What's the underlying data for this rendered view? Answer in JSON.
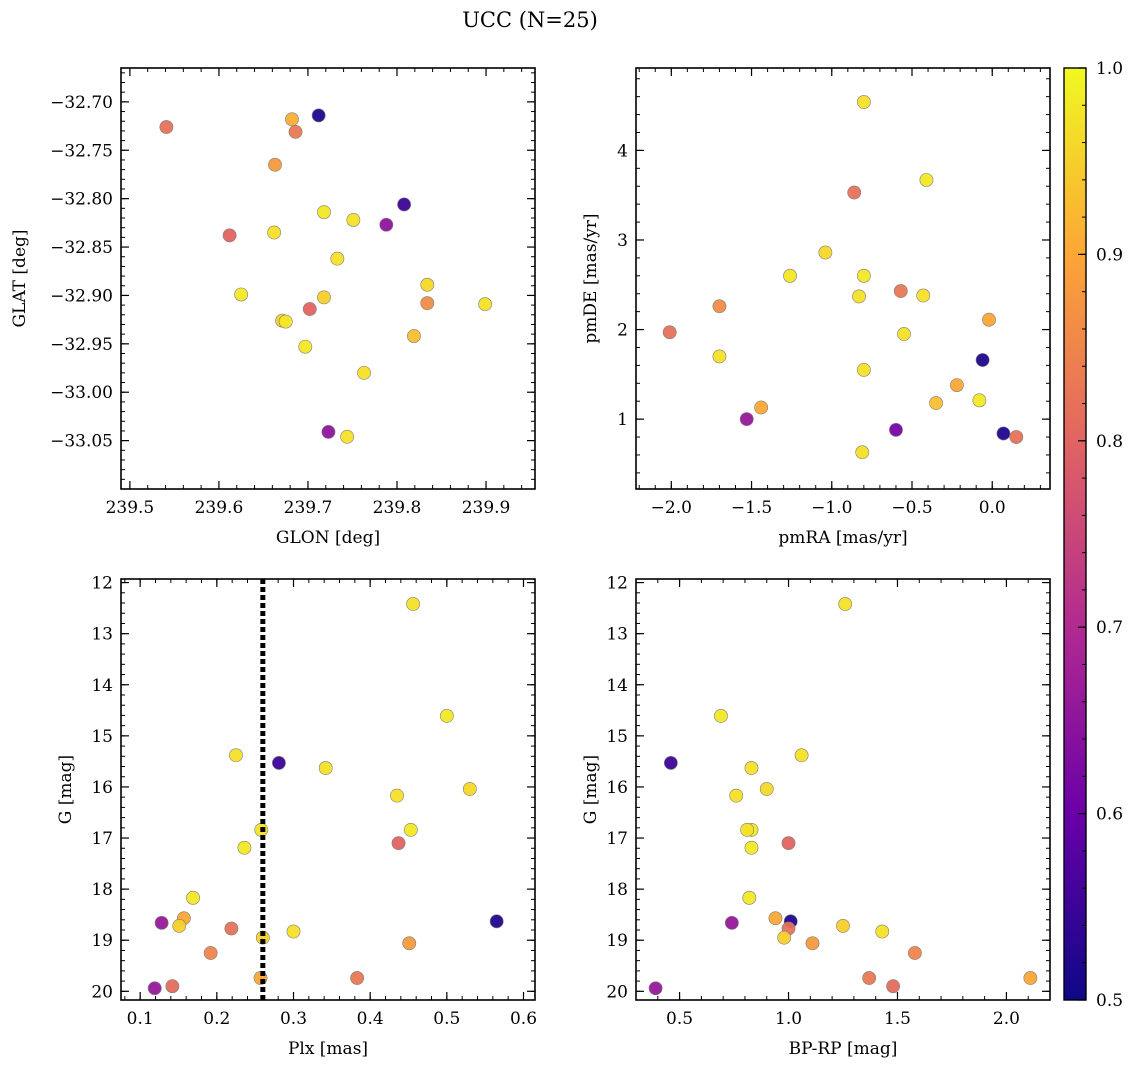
{
  "figure": {
    "title": "UCC (N=25)"
  },
  "colors": {
    "colormap": [
      "#0d0887",
      "#6a00a8",
      "#b12a90",
      "#e16462",
      "#fca636",
      "#f0f921"
    ],
    "marker_edge": "#7f7f7f",
    "line": "#000000"
  },
  "colorbar": {
    "vmin": 0.5,
    "vmax": 1.0,
    "ticks": [
      "0.5",
      "0.6",
      "0.7",
      "0.8",
      "0.9",
      "1.0"
    ],
    "orientation": "vertical"
  },
  "chart_data": [
    {
      "type": "scatter",
      "xlabel": "GLON [deg]",
      "ylabel": "GLAT [deg]",
      "xlim": [
        239.49,
        239.955
      ],
      "ylim": [
        -33.1,
        -32.665
      ],
      "xticks": [
        "239.5",
        "239.6",
        "239.7",
        "239.8",
        "239.9"
      ],
      "yticks": [
        "−32.70",
        "−32.75",
        "−32.80",
        "−32.85",
        "−32.90",
        "−32.95",
        "−33.00",
        "−33.05"
      ],
      "x": [
        239.541,
        239.712,
        239.682,
        239.686,
        239.663,
        239.808,
        239.718,
        239.751,
        239.788,
        239.612,
        239.662,
        239.733,
        239.625,
        239.834,
        239.718,
        239.899,
        239.834,
        239.702,
        239.671,
        239.675,
        239.819,
        239.697,
        239.763,
        239.723,
        239.744
      ],
      "y": [
        -32.726,
        -32.714,
        -32.718,
        -32.731,
        -32.765,
        -32.806,
        -32.814,
        -32.822,
        -32.827,
        -32.838,
        -32.835,
        -32.862,
        -32.899,
        -32.889,
        -32.902,
        -32.909,
        -32.908,
        -32.914,
        -32.926,
        -32.927,
        -32.942,
        -32.953,
        -32.98,
        -33.041,
        -33.046
      ],
      "c": [
        0.82,
        0.52,
        0.91,
        0.83,
        0.88,
        0.55,
        0.98,
        0.97,
        0.65,
        0.8,
        0.97,
        0.97,
        0.98,
        0.96,
        0.95,
        0.97,
        0.86,
        0.8,
        0.95,
        0.98,
        0.93,
        0.98,
        0.97,
        0.65,
        0.97
      ]
    },
    {
      "type": "scatter",
      "xlabel": "pmRA [mas/yr]",
      "ylabel": "pmDE [mas/yr]",
      "xlim": [
        -2.22,
        0.36
      ],
      "ylim": [
        0.22,
        4.92
      ],
      "xticks": [
        "−2.0",
        "−1.5",
        "−1.0",
        "−0.5",
        "0.0"
      ],
      "yticks": [
        "1",
        "2",
        "3",
        "4"
      ],
      "x": [
        -0.8,
        -0.41,
        -0.86,
        -1.04,
        -1.26,
        -0.8,
        -0.57,
        -0.83,
        -0.43,
        -1.7,
        -0.02,
        -2.01,
        -0.55,
        -1.7,
        -0.06,
        -0.8,
        -0.22,
        -0.35,
        -0.08,
        -1.44,
        0.07,
        -1.53,
        -0.6,
        0.15,
        -0.81
      ],
      "y": [
        4.54,
        3.67,
        3.53,
        2.86,
        2.6,
        2.6,
        2.43,
        2.37,
        2.38,
        2.26,
        2.11,
        1.97,
        1.95,
        1.7,
        1.66,
        1.55,
        1.38,
        1.18,
        1.21,
        1.13,
        0.84,
        1.0,
        0.88,
        0.8,
        0.63
      ],
      "c": [
        0.97,
        0.98,
        0.82,
        0.96,
        0.98,
        0.98,
        0.83,
        0.97,
        0.97,
        0.86,
        0.9,
        0.82,
        0.97,
        0.97,
        0.52,
        0.97,
        0.9,
        0.93,
        0.98,
        0.9,
        0.52,
        0.66,
        0.62,
        0.82,
        0.97
      ]
    },
    {
      "type": "scatter",
      "xlabel": "Plx [mas]",
      "ylabel": "G [mag]",
      "xlim": [
        0.075,
        0.615
      ],
      "ylim": [
        20.17,
        11.93
      ],
      "y_inverted": true,
      "xticks": [
        "0.1",
        "0.2",
        "0.3",
        "0.4",
        "0.5",
        "0.6"
      ],
      "yticks": [
        "12",
        "13",
        "14",
        "15",
        "16",
        "17",
        "18",
        "19",
        "20"
      ],
      "vline_x": 0.26,
      "vline_style": "dotted",
      "x": [
        0.456,
        0.5,
        0.225,
        0.281,
        0.342,
        0.53,
        0.435,
        0.453,
        0.258,
        0.437,
        0.236,
        0.169,
        0.157,
        0.128,
        0.151,
        0.219,
        0.565,
        0.3,
        0.26,
        0.451,
        0.192,
        0.257,
        0.383,
        0.142,
        0.119
      ],
      "y": [
        12.42,
        14.61,
        15.38,
        15.53,
        15.63,
        16.04,
        16.17,
        16.84,
        16.84,
        17.1,
        17.19,
        18.17,
        18.57,
        18.66,
        18.72,
        18.77,
        18.63,
        18.83,
        18.95,
        19.06,
        19.25,
        19.74,
        19.74,
        19.9,
        19.94
      ],
      "c": [
        0.97,
        0.98,
        0.97,
        0.55,
        0.97,
        0.96,
        0.97,
        0.98,
        0.97,
        0.8,
        0.98,
        0.98,
        0.9,
        0.66,
        0.95,
        0.82,
        0.52,
        0.97,
        0.95,
        0.88,
        0.85,
        0.9,
        0.83,
        0.81,
        0.66
      ]
    },
    {
      "type": "scatter",
      "xlabel": "BP-RP [mag]",
      "ylabel": "G [mag]",
      "xlim": [
        0.3,
        2.2
      ],
      "ylim": [
        20.17,
        11.93
      ],
      "y_inverted": true,
      "xticks": [
        "0.5",
        "1.0",
        "1.5",
        "2.0"
      ],
      "yticks": [
        "12",
        "13",
        "14",
        "15",
        "16",
        "17",
        "18",
        "19",
        "20"
      ],
      "x": [
        1.26,
        0.69,
        1.06,
        0.46,
        0.83,
        0.9,
        0.76,
        0.83,
        0.81,
        1.0,
        0.83,
        0.82,
        1.01,
        0.94,
        0.74,
        1.0,
        1.25,
        1.43,
        0.98,
        1.11,
        1.58,
        1.37,
        2.11,
        1.48,
        0.39
      ],
      "y": [
        12.42,
        14.61,
        15.38,
        15.53,
        15.63,
        16.04,
        16.17,
        16.84,
        16.84,
        17.1,
        17.19,
        18.17,
        18.63,
        18.57,
        18.66,
        18.77,
        18.72,
        18.83,
        18.95,
        19.06,
        19.25,
        19.74,
        19.74,
        19.9,
        19.94
      ],
      "c": [
        0.97,
        0.98,
        0.97,
        0.55,
        0.97,
        0.96,
        0.97,
        0.98,
        0.97,
        0.8,
        0.98,
        0.98,
        0.52,
        0.9,
        0.66,
        0.82,
        0.95,
        0.97,
        0.95,
        0.88,
        0.85,
        0.83,
        0.9,
        0.81,
        0.66
      ]
    }
  ]
}
